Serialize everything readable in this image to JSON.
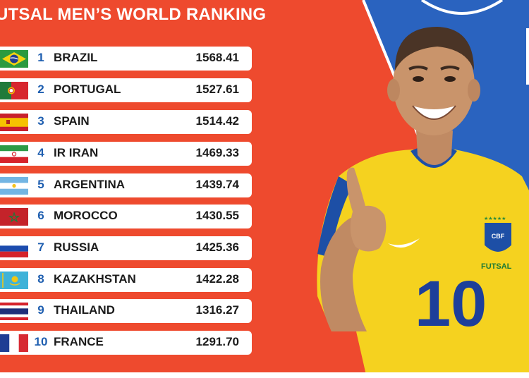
{
  "header": {
    "title": "UTSAL MEN’S WORLD RANKING"
  },
  "colors": {
    "background_red": "#ee4a2e",
    "background_blue": "#2a63bf",
    "jersey_yellow": "#f5d21f",
    "rank_blue": "#1f5fb0"
  },
  "rankings": [
    {
      "rank": "1",
      "country": "BRAZIL",
      "points": "1568.41",
      "flag": "brazil-flag-icon"
    },
    {
      "rank": "2",
      "country": "PORTUGAL",
      "points": "1527.61",
      "flag": "portugal-flag-icon"
    },
    {
      "rank": "3",
      "country": "SPAIN",
      "points": "1514.42",
      "flag": "spain-flag-icon"
    },
    {
      "rank": "4",
      "country": "IR IRAN",
      "points": "1469.33",
      "flag": "iran-flag-icon"
    },
    {
      "rank": "5",
      "country": "ARGENTINA",
      "points": "1439.74",
      "flag": "argentina-flag-icon"
    },
    {
      "rank": "6",
      "country": "MOROCCO",
      "points": "1430.55",
      "flag": "morocco-flag-icon"
    },
    {
      "rank": "7",
      "country": "RUSSIA",
      "points": "1425.36",
      "flag": "russia-flag-icon"
    },
    {
      "rank": "8",
      "country": "KAZAKHSTAN",
      "points": "1422.28",
      "flag": "kazakhstan-flag-icon"
    },
    {
      "rank": "9",
      "country": "THAILAND",
      "points": "1316.27",
      "flag": "thailand-flag-icon"
    },
    {
      "rank": "10",
      "country": "FRANCE",
      "points": "1291.70",
      "flag": "france-flag-icon"
    }
  ],
  "player": {
    "badge_text": "CBF",
    "badge_label": "FUTSAL",
    "shirt_number": "10"
  }
}
